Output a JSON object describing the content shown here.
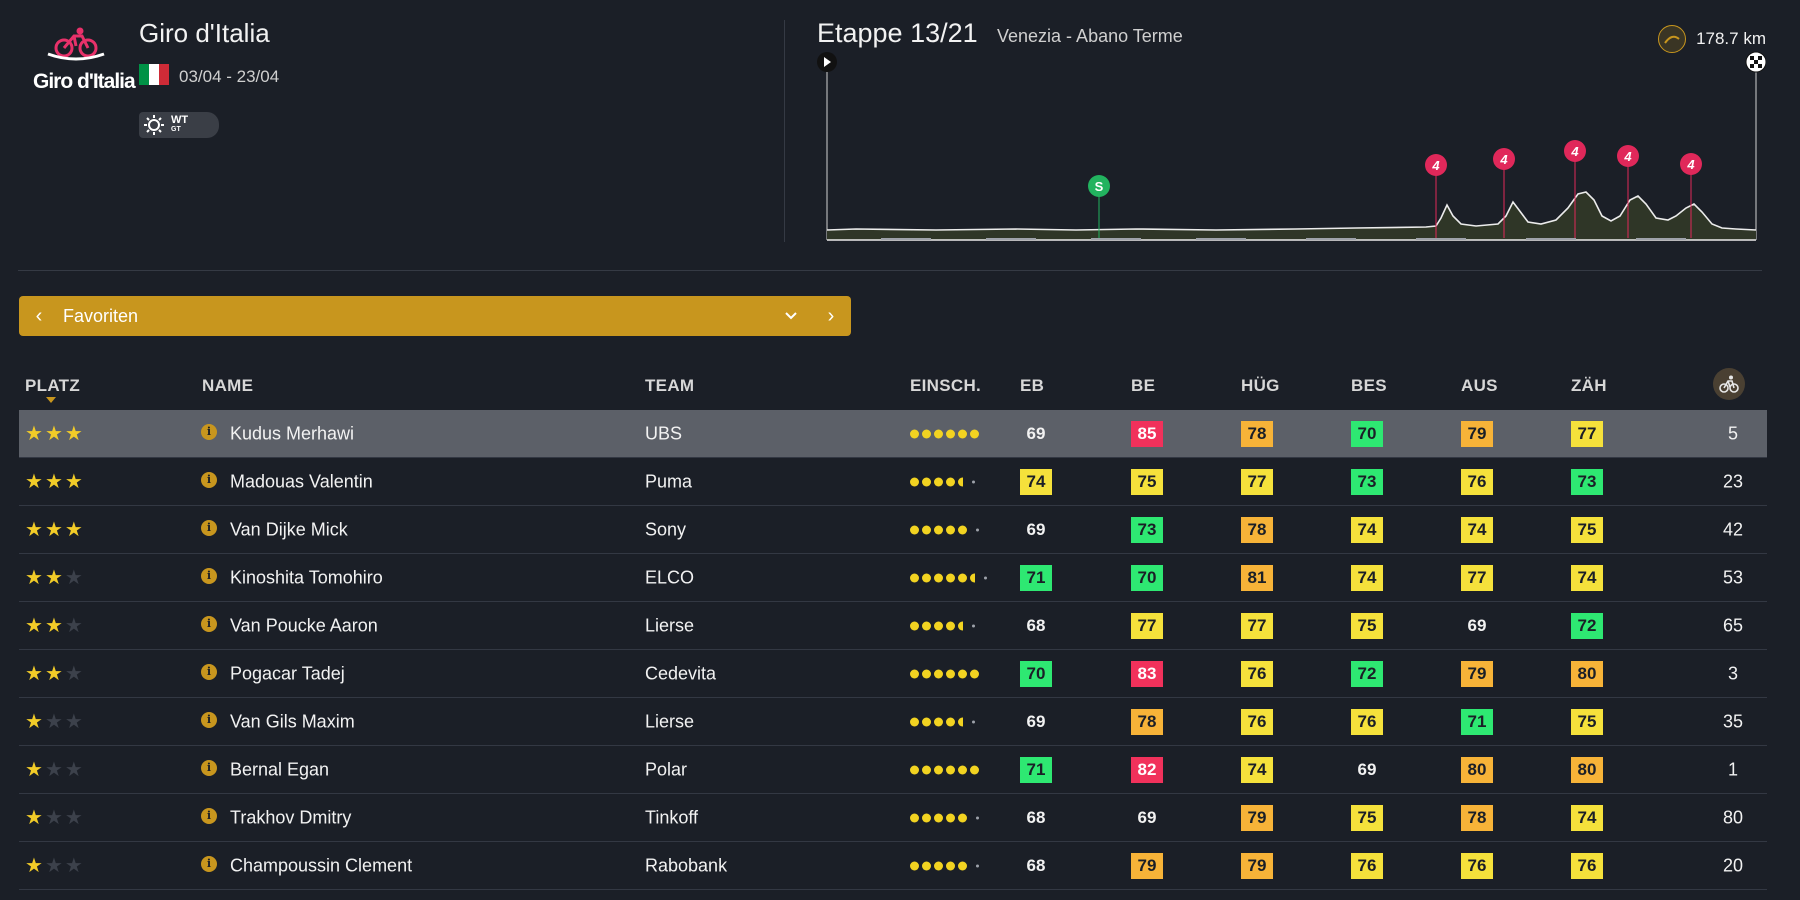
{
  "race": {
    "logo_text": "Giro d'Italia",
    "title": "Giro d'Italia",
    "dates": "03/04 - 23/04",
    "category_badge": "WT",
    "category_sub": "GT",
    "flag_colors": [
      "#009246",
      "#ffffff",
      "#ce2b37"
    ]
  },
  "stage": {
    "title": "Etappe 13/21",
    "route": "Venezia - Abano Terme",
    "distance": "178.7 km",
    "sprint_marker": "S",
    "climb_category": "4"
  },
  "selector": {
    "label": "Favoriten"
  },
  "table": {
    "headers": {
      "platz": "PLATZ",
      "name": "NAME",
      "team": "TEAM",
      "einsch": "EINSCH.",
      "eb": "EB",
      "be": "BE",
      "hug": "HÜG",
      "bes": "BES",
      "aus": "AUS",
      "zah": "ZÄH"
    },
    "rows": [
      {
        "stars": 3,
        "name": "Kudus Merhawi",
        "team": "UBS",
        "form": 6,
        "eb": "69",
        "eb_c": "plain",
        "be": "85",
        "be_c": "red",
        "hug": "78",
        "hug_c": "orange",
        "bes": "70",
        "bes_c": "green",
        "aus": "79",
        "aus_c": "orange",
        "zah": "77",
        "zah_c": "yellow",
        "rank": "5"
      },
      {
        "stars": 3,
        "name": "Madouas Valentin",
        "team": "Puma",
        "form": 4.5,
        "eb": "74",
        "eb_c": "yellow",
        "be": "75",
        "be_c": "yellow",
        "hug": "77",
        "hug_c": "yellow",
        "bes": "73",
        "bes_c": "green",
        "aus": "76",
        "aus_c": "yellow",
        "zah": "73",
        "zah_c": "green",
        "rank": "23"
      },
      {
        "stars": 3,
        "name": "Van Dijke Mick",
        "team": "Sony",
        "form": 5,
        "eb": "69",
        "eb_c": "plain",
        "be": "73",
        "be_c": "green",
        "hug": "78",
        "hug_c": "orange",
        "bes": "74",
        "bes_c": "yellow",
        "aus": "74",
        "aus_c": "yellow",
        "zah": "75",
        "zah_c": "yellow",
        "rank": "42"
      },
      {
        "stars": 2,
        "name": "Kinoshita Tomohiro",
        "team": "ELCO",
        "form": 5.5,
        "eb": "71",
        "eb_c": "green",
        "be": "70",
        "be_c": "green",
        "hug": "81",
        "hug_c": "orange",
        "bes": "74",
        "bes_c": "yellow",
        "aus": "77",
        "aus_c": "yellow",
        "zah": "74",
        "zah_c": "yellow",
        "rank": "53"
      },
      {
        "stars": 2,
        "name": "Van Poucke Aaron",
        "team": "Lierse",
        "form": 4.5,
        "eb": "68",
        "eb_c": "plain",
        "be": "77",
        "be_c": "yellow",
        "hug": "77",
        "hug_c": "yellow",
        "bes": "75",
        "bes_c": "yellow",
        "aus": "69",
        "aus_c": "plain",
        "zah": "72",
        "zah_c": "green",
        "rank": "65"
      },
      {
        "stars": 2,
        "name": "Pogacar Tadej",
        "team": "Cedevita",
        "form": 6,
        "eb": "70",
        "eb_c": "green",
        "be": "83",
        "be_c": "red",
        "hug": "76",
        "hug_c": "yellow",
        "bes": "72",
        "bes_c": "green",
        "aus": "79",
        "aus_c": "orange",
        "zah": "80",
        "zah_c": "orange",
        "rank": "3"
      },
      {
        "stars": 1,
        "name": "Van Gils Maxim",
        "team": "Lierse",
        "form": 4.5,
        "eb": "69",
        "eb_c": "plain",
        "be": "78",
        "be_c": "orange",
        "hug": "76",
        "hug_c": "yellow",
        "bes": "76",
        "bes_c": "yellow",
        "aus": "71",
        "aus_c": "green",
        "zah": "75",
        "zah_c": "yellow",
        "rank": "35"
      },
      {
        "stars": 1,
        "name": "Bernal Egan",
        "team": "Polar",
        "form": 6,
        "eb": "71",
        "eb_c": "green",
        "be": "82",
        "be_c": "red",
        "hug": "74",
        "hug_c": "yellow",
        "bes": "69",
        "bes_c": "plain",
        "aus": "80",
        "aus_c": "orange",
        "zah": "80",
        "zah_c": "orange",
        "rank": "1"
      },
      {
        "stars": 1,
        "name": "Trakhov Dmitry",
        "team": "Tinkoff",
        "form": 5,
        "eb": "68",
        "eb_c": "plain",
        "be": "69",
        "be_c": "plain",
        "hug": "79",
        "hug_c": "orange",
        "bes": "75",
        "bes_c": "yellow",
        "aus": "78",
        "aus_c": "orange",
        "zah": "74",
        "zah_c": "yellow",
        "rank": "80"
      },
      {
        "stars": 1,
        "name": "Champoussin Clement",
        "team": "Rabobank",
        "form": 5,
        "eb": "68",
        "eb_c": "plain",
        "be": "79",
        "be_c": "orange",
        "hug": "79",
        "hug_c": "orange",
        "bes": "76",
        "bes_c": "yellow",
        "aus": "76",
        "aus_c": "yellow",
        "zah": "76",
        "zah_c": "yellow",
        "rank": "20"
      }
    ]
  },
  "icons": {
    "info": "i",
    "star": "★",
    "prev": "‹",
    "next": "›"
  }
}
